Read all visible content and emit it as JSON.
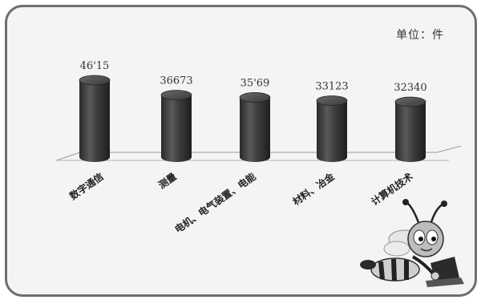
{
  "chart_data": {
    "type": "bar",
    "title": "",
    "unit_label": "单位：件",
    "xlabel": "",
    "ylabel": "",
    "categories": [
      "数字通信",
      "测量",
      "电机、电气装置、电能",
      "材料、冶金",
      "计算机技术"
    ],
    "values": [
      46115,
      36673,
      35169,
      33123,
      32340
    ],
    "value_labels": [
      "46'15",
      "36673",
      "35'69",
      "33123",
      "32340"
    ],
    "grid": false,
    "legend": "none",
    "bar_color": "#3a3a3a",
    "background_color": "#f4f4f4"
  },
  "decor": {
    "mascot_icon": "bee-mascot-icon"
  }
}
